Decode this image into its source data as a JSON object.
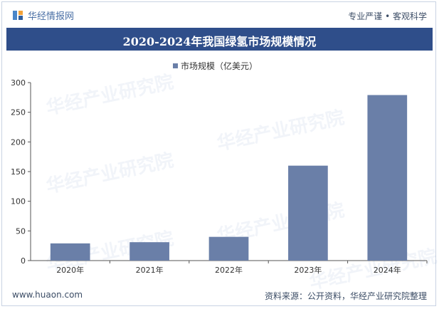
{
  "header": {
    "brand": "华经情报网",
    "slogan": "专业严谨 • 客观科学"
  },
  "watermark": "华经产业研究院",
  "chart_data": {
    "type": "bar",
    "title": "2020-2024年我国绿氢市场规模情况",
    "categories": [
      "2020年",
      "2021年",
      "2022年",
      "2023年",
      "2024年"
    ],
    "series": [
      {
        "name": "市场规模（亿美元）",
        "values": [
          29,
          31,
          40,
          160,
          279
        ]
      }
    ],
    "ylim": [
      0,
      300
    ],
    "yticks": [
      0,
      50,
      100,
      150,
      200,
      250,
      300
    ],
    "legend_position": "top",
    "grid": false,
    "bar_color": "#6a7fa8"
  },
  "footer": {
    "site": "www.huaon.com",
    "source": "资料来源：公开资料，华经产业研究院整理"
  }
}
